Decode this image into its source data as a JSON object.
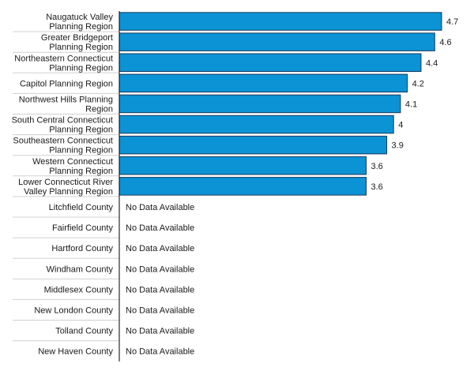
{
  "chart_data": {
    "type": "bar",
    "orientation": "horizontal",
    "bar_color": "#0b93d5",
    "bar_stroke": "#1a3a5c",
    "separator_color": "#d0d0d0",
    "axis_color": "#000000",
    "xlim": [
      0,
      4.7
    ],
    "no_data_text": "No Data Available",
    "categories": [
      "Naugatuck Valley Planning Region",
      "Greater Bridgeport Planning Region",
      "Northeastern Connecticut Planning Region",
      "Capitol Planning Region",
      "Northwest Hills Planning Region",
      "South Central Connecticut Planning Region",
      "Southeastern Connecticut Planning Region",
      "Western Connecticut Planning Region",
      "Lower Connecticut River Valley Planning Region",
      "Litchfield County",
      "Fairfield County",
      "Hartford County",
      "Windham County",
      "Middlesex County",
      "New London County",
      "Tolland County",
      "New Haven County"
    ],
    "category_label_lines": [
      [
        "Naugatuck Valley",
        "Planning Region"
      ],
      [
        "Greater Bridgeport",
        "Planning Region"
      ],
      [
        "Northeastern Connecticut",
        "Planning Region"
      ],
      [
        "Capitol Planning Region"
      ],
      [
        "Northwest Hills Planning",
        "Region"
      ],
      [
        "South Central Connecticut",
        "Planning Region"
      ],
      [
        "Southeastern Connecticut",
        "Planning Region"
      ],
      [
        "Western Connecticut",
        "Planning Region"
      ],
      [
        "Lower Connecticut River",
        "Valley Planning Region"
      ],
      [
        "Litchfield County"
      ],
      [
        "Fairfield County"
      ],
      [
        "Hartford County"
      ],
      [
        "Windham County"
      ],
      [
        "Middlesex County"
      ],
      [
        "New London County"
      ],
      [
        "Tolland County"
      ],
      [
        "New Haven County"
      ]
    ],
    "values": [
      4.7,
      4.6,
      4.4,
      4.2,
      4.1,
      4,
      3.9,
      3.6,
      3.6,
      null,
      null,
      null,
      null,
      null,
      null,
      null,
      null
    ],
    "value_labels": [
      "4.7",
      "4.6",
      "4.4",
      "4.2",
      "4.1",
      "4",
      "3.9",
      "3.6",
      "3.6",
      null,
      null,
      null,
      null,
      null,
      null,
      null,
      null
    ]
  }
}
